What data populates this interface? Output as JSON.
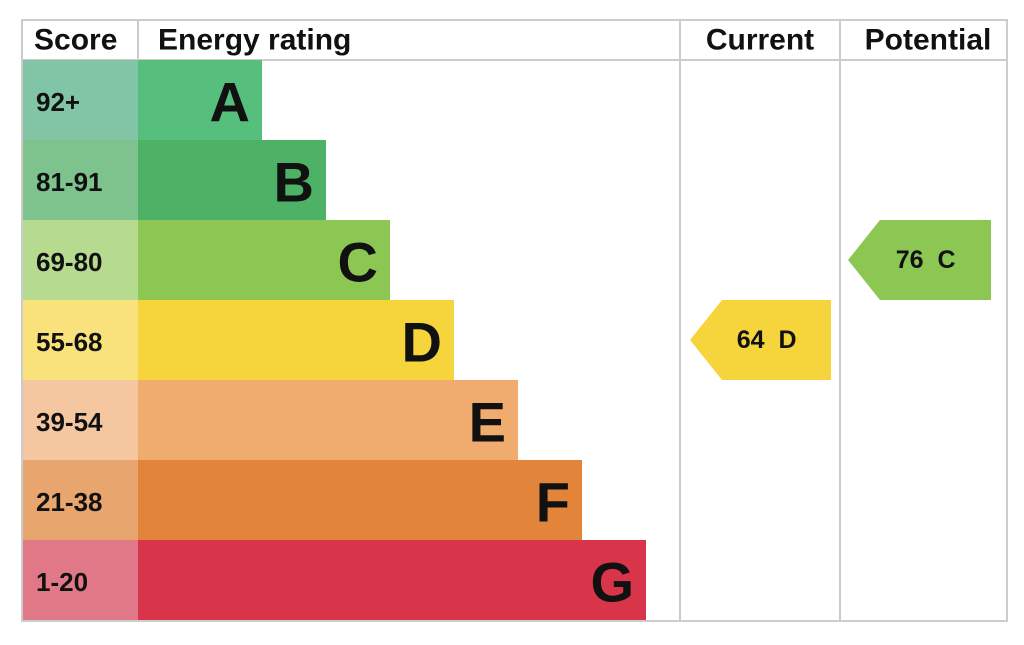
{
  "header": {
    "score": "Score",
    "rating": "Energy rating",
    "current": "Current",
    "potential": "Potential"
  },
  "rows": [
    {
      "score": "92+",
      "band": "A",
      "color": "#56bf7e",
      "light": "#82c4a6"
    },
    {
      "score": "81-91",
      "band": "B",
      "color": "#4db266",
      "light": "#7ec28d"
    },
    {
      "score": "69-80",
      "band": "C",
      "color": "#8dc753",
      "light": "#b6da8f"
    },
    {
      "score": "55-68",
      "band": "D",
      "color": "#f5d43c",
      "light": "#f9e27c"
    },
    {
      "score": "39-54",
      "band": "E",
      "color": "#efac6e",
      "light": "#f4c7a1"
    },
    {
      "score": "21-38",
      "band": "F",
      "color": "#e2853a",
      "light": "#e9a56e"
    },
    {
      "score": "1-20",
      "band": "G",
      "color": "#d8354a",
      "light": "#e07887"
    }
  ],
  "current": {
    "score": 64,
    "band": "D"
  },
  "potential": {
    "score": 76,
    "band": "C"
  }
}
